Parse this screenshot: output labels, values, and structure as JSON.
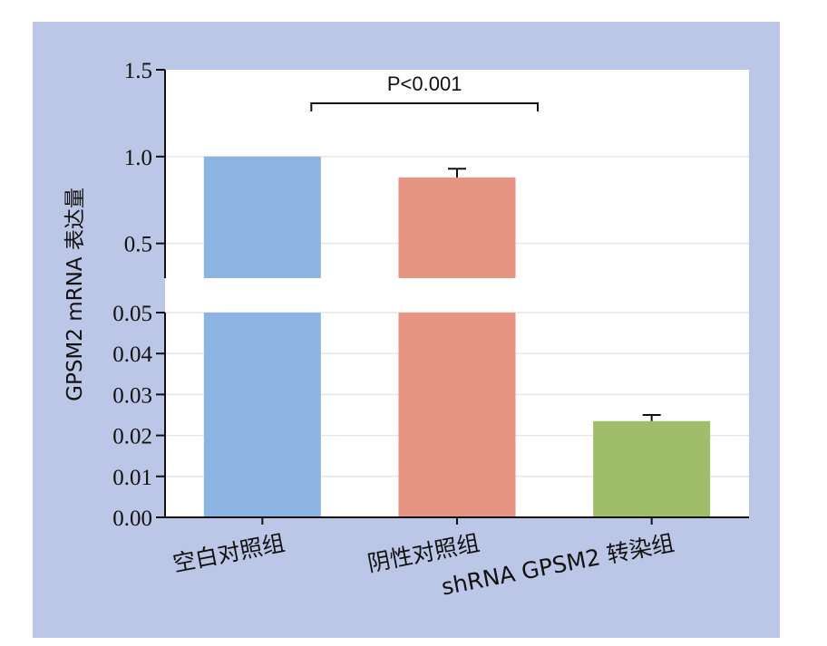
{
  "chart_data": {
    "type": "bar",
    "ylabel": "GPSM2 mRNA 表达量",
    "axis_break": true,
    "lower_segment": {
      "ylim": [
        0,
        0.05
      ],
      "ticks": [
        "0.00",
        "0.01",
        "0.02",
        "0.03",
        "0.04",
        "0.05"
      ]
    },
    "upper_segment": {
      "ylim": [
        0.3,
        1.5
      ],
      "ticks": [
        "0.5",
        "1.0",
        "1.5"
      ]
    },
    "categories": [
      "空白对照组",
      "阴性对照组",
      "shRNA GPSM2 转染组"
    ],
    "values": [
      1.0,
      0.88,
      0.0235
    ],
    "errors": [
      0,
      0.05,
      0.0015
    ],
    "colors": [
      "#8db3e2",
      "#e69585",
      "#a0bd6a"
    ],
    "grid": true,
    "annotation": {
      "text": "P<0.001",
      "from_category": 0,
      "to_category": 1
    }
  }
}
